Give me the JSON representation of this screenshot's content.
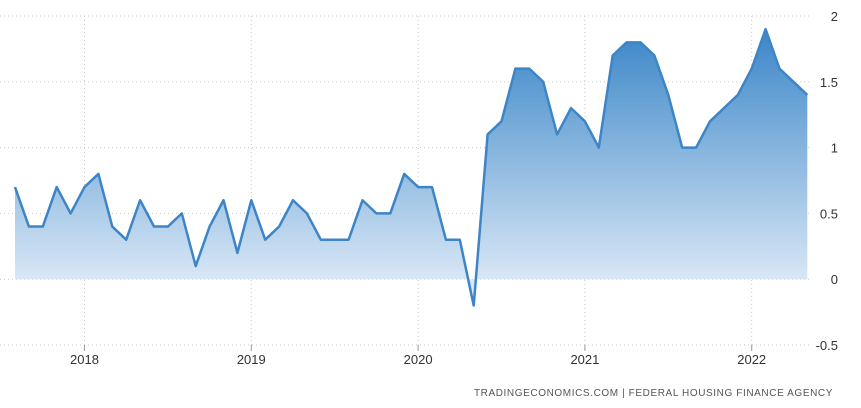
{
  "chart_data": {
    "type": "area",
    "title": "",
    "xlabel": "",
    "ylabel": "",
    "x": [
      "2017-08",
      "2017-09",
      "2017-10",
      "2017-11",
      "2017-12",
      "2018-01",
      "2018-02",
      "2018-03",
      "2018-04",
      "2018-05",
      "2018-06",
      "2018-07",
      "2018-08",
      "2018-09",
      "2018-10",
      "2018-11",
      "2018-12",
      "2019-01",
      "2019-02",
      "2019-03",
      "2019-04",
      "2019-05",
      "2019-06",
      "2019-07",
      "2019-08",
      "2019-09",
      "2019-10",
      "2019-11",
      "2019-12",
      "2020-01",
      "2020-02",
      "2020-03",
      "2020-04",
      "2020-05",
      "2020-06",
      "2020-07",
      "2020-08",
      "2020-09",
      "2020-10",
      "2020-11",
      "2020-12",
      "2021-01",
      "2021-02",
      "2021-03",
      "2021-04",
      "2021-05",
      "2021-06",
      "2021-07",
      "2021-08",
      "2021-09",
      "2021-10",
      "2021-11",
      "2021-12",
      "2022-01",
      "2022-02",
      "2022-03",
      "2022-04",
      "2022-05"
    ],
    "values": [
      0.7,
      0.4,
      0.4,
      0.7,
      0.5,
      0.7,
      0.8,
      0.4,
      0.3,
      0.6,
      0.4,
      0.4,
      0.5,
      0.1,
      0.4,
      0.6,
      0.2,
      0.6,
      0.3,
      0.4,
      0.6,
      0.5,
      0.3,
      0.3,
      0.3,
      0.6,
      0.5,
      0.5,
      0.8,
      0.7,
      0.7,
      0.3,
      0.3,
      -0.2,
      1.1,
      1.2,
      1.6,
      1.6,
      1.5,
      1.1,
      1.3,
      1.2,
      1.0,
      1.7,
      1.8,
      1.8,
      1.7,
      1.4,
      1.0,
      1.0,
      1.2,
      1.3,
      1.4,
      1.6,
      1.9,
      1.6,
      1.5,
      1.4
    ],
    "x_tick_labels": [
      "2018",
      "2019",
      "2020",
      "2021",
      "2022"
    ],
    "y_tick_labels": [
      "2",
      "1.5",
      "1",
      "0.5",
      "0",
      "-0.5"
    ],
    "ylim": [
      -0.5,
      2
    ],
    "grid": true,
    "legend": "none",
    "y_axis_side": "right",
    "colors": {
      "line": "#3d85c6",
      "fill_top": "#3b86c8",
      "fill_bottom": "#e8f1fa",
      "grid": "#c9c9c9"
    },
    "source_text": "TRADINGECONOMICS.COM  |  FEDERAL HOUSING FINANCE AGENCY"
  }
}
